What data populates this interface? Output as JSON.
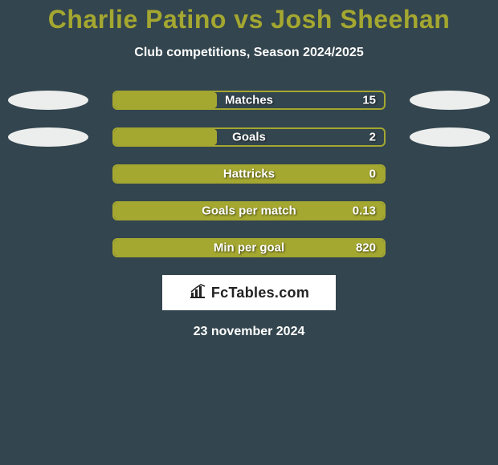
{
  "title": {
    "text": "Charlie Patino vs Josh Sheehan",
    "color": "#a4a730",
    "fontsize": 32
  },
  "subtitle": "Club competitions, Season 2024/2025",
  "ellipse_color": "#eceeed",
  "bar_border_color": "#a4a730",
  "bar_fill_color": "#a4a730",
  "background_color": "#33454e",
  "rows": [
    {
      "label": "Matches",
      "value": "15",
      "fill_pct": 38,
      "show_left_ellipse": true,
      "show_right_ellipse": true
    },
    {
      "label": "Goals",
      "value": "2",
      "fill_pct": 38,
      "show_left_ellipse": true,
      "show_right_ellipse": true
    },
    {
      "label": "Hattricks",
      "value": "0",
      "fill_pct": 100,
      "show_left_ellipse": false,
      "show_right_ellipse": false
    },
    {
      "label": "Goals per match",
      "value": "0.13",
      "fill_pct": 100,
      "show_left_ellipse": false,
      "show_right_ellipse": false
    },
    {
      "label": "Min per goal",
      "value": "820",
      "fill_pct": 100,
      "show_left_ellipse": false,
      "show_right_ellipse": false
    }
  ],
  "logo_text": "FcTables.com",
  "date": "23 november 2024"
}
